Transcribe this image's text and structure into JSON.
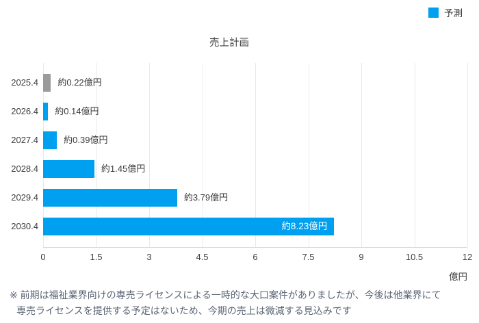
{
  "legend": {
    "items": [
      {
        "label": "予測",
        "color": "#00a0f0"
      }
    ]
  },
  "chart_data": {
    "type": "bar",
    "orientation": "horizontal",
    "title": "売上計画",
    "categories": [
      "2025.4",
      "2026.4",
      "2027.4",
      "2028.4",
      "2029.4",
      "2030.4"
    ],
    "values": [
      0.22,
      0.14,
      0.39,
      1.45,
      3.79,
      8.23
    ],
    "bar_labels": [
      "約0.22億円",
      "約0.14億円",
      "約0.39億円",
      "約1.45億円",
      "約3.79億円",
      "約8.23億円"
    ],
    "bar_colors": [
      "#9b9b9b",
      "#00a0f0",
      "#00a0f0",
      "#00a0f0",
      "#00a0f0",
      "#00a0f0"
    ],
    "label_inside": [
      false,
      false,
      false,
      false,
      false,
      true
    ],
    "xlim": [
      0,
      12
    ],
    "xticks": [
      0,
      1.5,
      3,
      4.5,
      6,
      7.5,
      9,
      10.5,
      12
    ],
    "xtick_labels": [
      "0",
      "1.5",
      "3",
      "4.5",
      "6",
      "7.5",
      "9",
      "10.5",
      "12"
    ],
    "x_unit": "億円",
    "grid": "vertical",
    "legend_position": "top-right",
    "series": [
      {
        "name": "予測",
        "values": [
          0.22,
          0.14,
          0.39,
          1.45,
          3.79,
          8.23
        ]
      }
    ]
  },
  "footnote": {
    "line1": "※ 前期は福祉業界向けの専売ライセンスによる一時的な大口案件がありましたが、今後は他業界にて",
    "line2": "専売ライセンスを提供する予定はないため、今期の売上は微減する見込みです"
  },
  "colors": {
    "forecast_blue": "#00a0f0",
    "gray_bar": "#9b9b9b",
    "gridline": "#e9e9e9",
    "axis_line": "#d6d6d6"
  }
}
